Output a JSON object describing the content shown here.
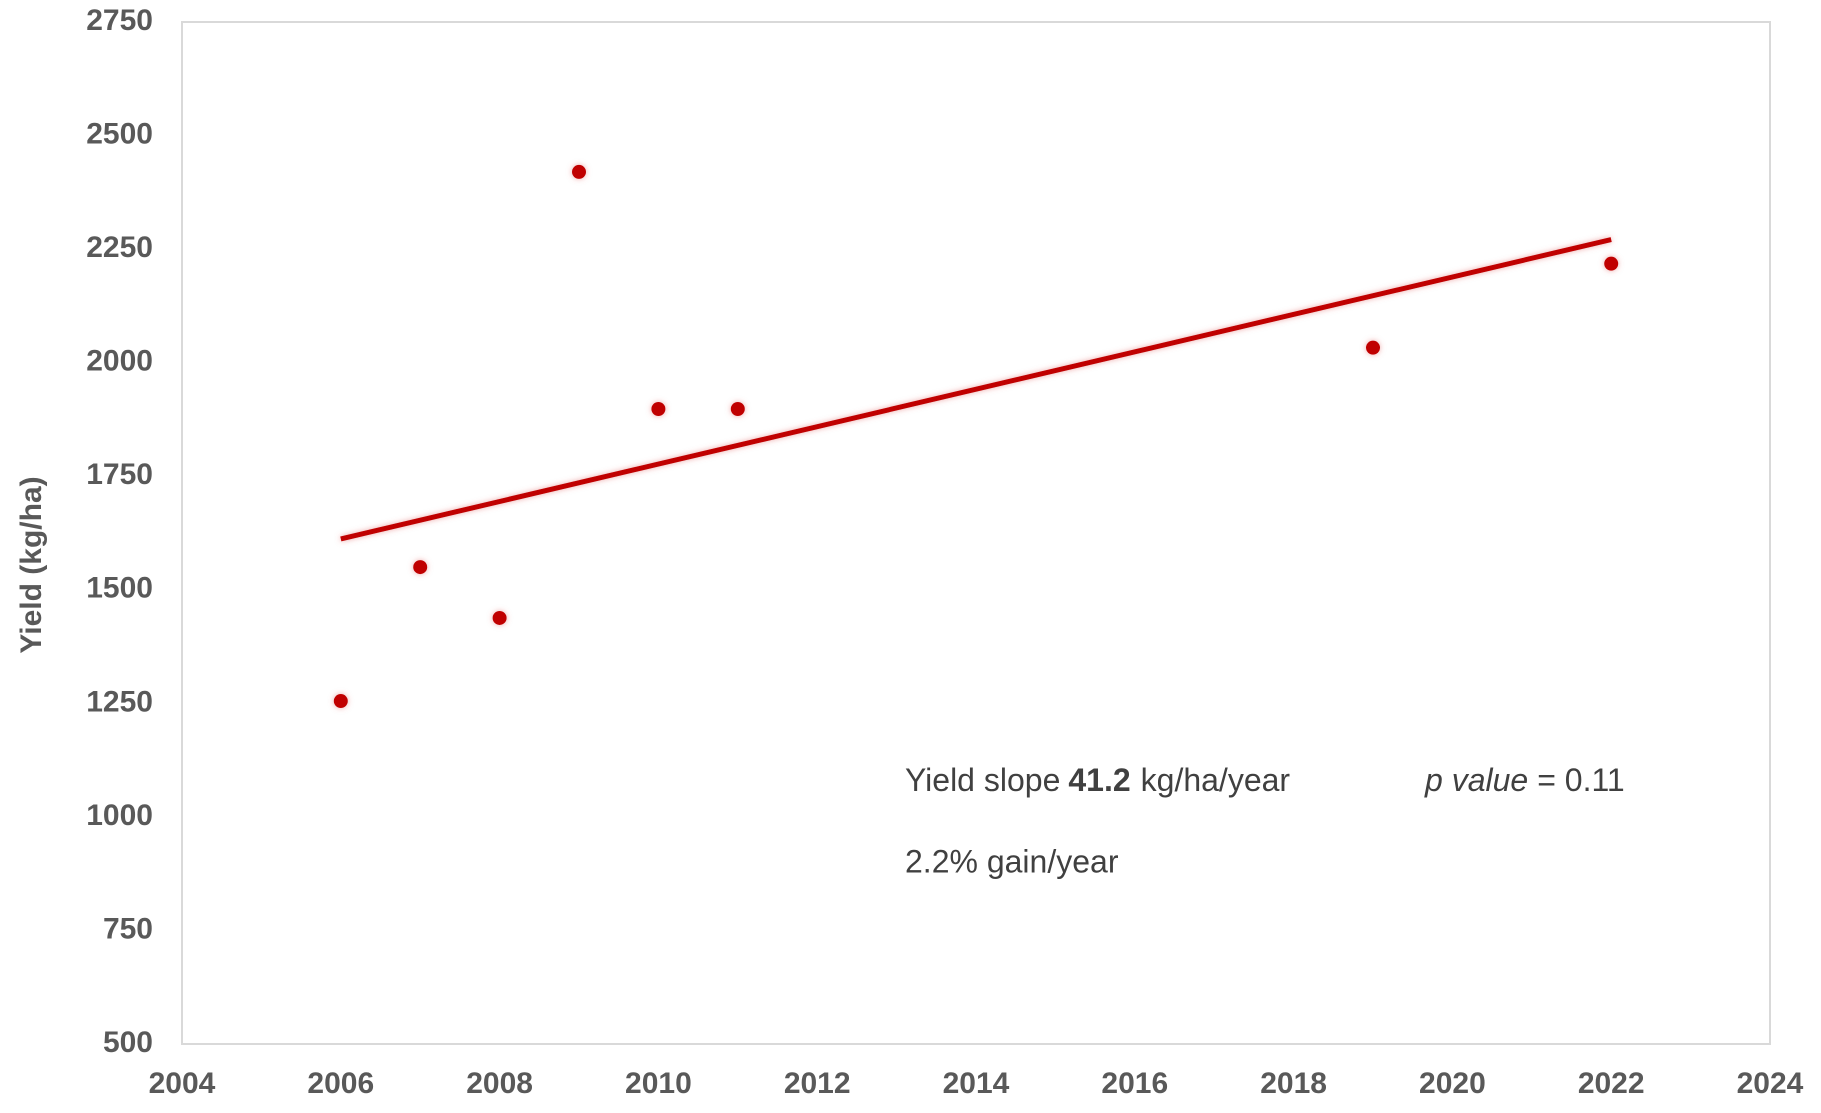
{
  "chart_data": {
    "type": "scatter",
    "y_label": "Yield (kg/ha)",
    "x": [
      2006,
      2007,
      2008,
      2009,
      2010,
      2011,
      2019,
      2022
    ],
    "values": [
      1255,
      1550,
      1438,
      2420,
      1898,
      1898,
      2033,
      2218
    ],
    "color": "#c00000",
    "trendline": {
      "x": [
        2006,
        2022
      ],
      "values": [
        1612,
        2271
      ],
      "color": "#c00000"
    },
    "xlim": [
      2004,
      2024
    ],
    "xticks": [
      2004,
      2006,
      2008,
      2010,
      2012,
      2014,
      2016,
      2018,
      2020,
      2022,
      2024
    ],
    "ylim": [
      500,
      2750
    ],
    "yticks": [
      500,
      750,
      1000,
      1250,
      1500,
      1750,
      2000,
      2250,
      2500,
      2750
    ],
    "grid": false,
    "annotations": {
      "slope_label": "Yield slope",
      "slope_value": "41.2",
      "slope_unit": "kg/ha/year",
      "p_label": "p value",
      "p_rest": "= 0.11",
      "gain": "2.2% gain/year"
    }
  }
}
